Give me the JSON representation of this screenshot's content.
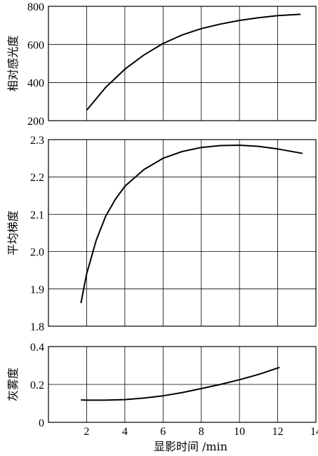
{
  "chart_data": [
    {
      "type": "line",
      "ylabel": "相对感光度",
      "xlim": [
        0,
        14
      ],
      "ylim": [
        200,
        800
      ],
      "yticks": [
        "200",
        "400",
        "600",
        "800"
      ],
      "grid": true,
      "series": [
        {
          "x": [
            2,
            3,
            4,
            5,
            6,
            7,
            8,
            9,
            10,
            11,
            12,
            13.2
          ],
          "y": [
            255,
            375,
            470,
            545,
            605,
            650,
            683,
            707,
            726,
            740,
            751,
            758
          ]
        }
      ]
    },
    {
      "type": "line",
      "ylabel": "平均梯度",
      "xlim": [
        0,
        14
      ],
      "ylim": [
        1.8,
        2.3
      ],
      "yticks": [
        "1.8",
        "1.9",
        "2.0",
        "2.1",
        "2.2",
        "2.3"
      ],
      "grid": true,
      "series": [
        {
          "x": [
            1.7,
            2,
            2.5,
            3,
            3.5,
            4,
            5,
            6,
            7,
            8,
            9,
            10,
            11,
            12,
            13.3
          ],
          "y": [
            1.862,
            1.94,
            2.03,
            2.095,
            2.14,
            2.175,
            2.22,
            2.25,
            2.268,
            2.279,
            2.284,
            2.285,
            2.282,
            2.275,
            2.263
          ]
        }
      ]
    },
    {
      "type": "line",
      "ylabel": "灰雾度",
      "xlabel": "显影时间 /min",
      "xlim": [
        0,
        14
      ],
      "ylim": [
        0,
        0.4
      ],
      "yticks": [
        "0",
        "0.2",
        "0.4"
      ],
      "xticks": [
        "2",
        "4",
        "6",
        "8",
        "10",
        "12",
        "14"
      ],
      "grid": true,
      "series": [
        {
          "x": [
            1.7,
            2,
            3,
            4,
            5,
            6,
            7,
            8,
            9,
            10,
            11,
            12.1
          ],
          "y": [
            0.118,
            0.117,
            0.117,
            0.12,
            0.128,
            0.14,
            0.157,
            0.178,
            0.2,
            0.225,
            0.253,
            0.29
          ]
        }
      ]
    }
  ]
}
